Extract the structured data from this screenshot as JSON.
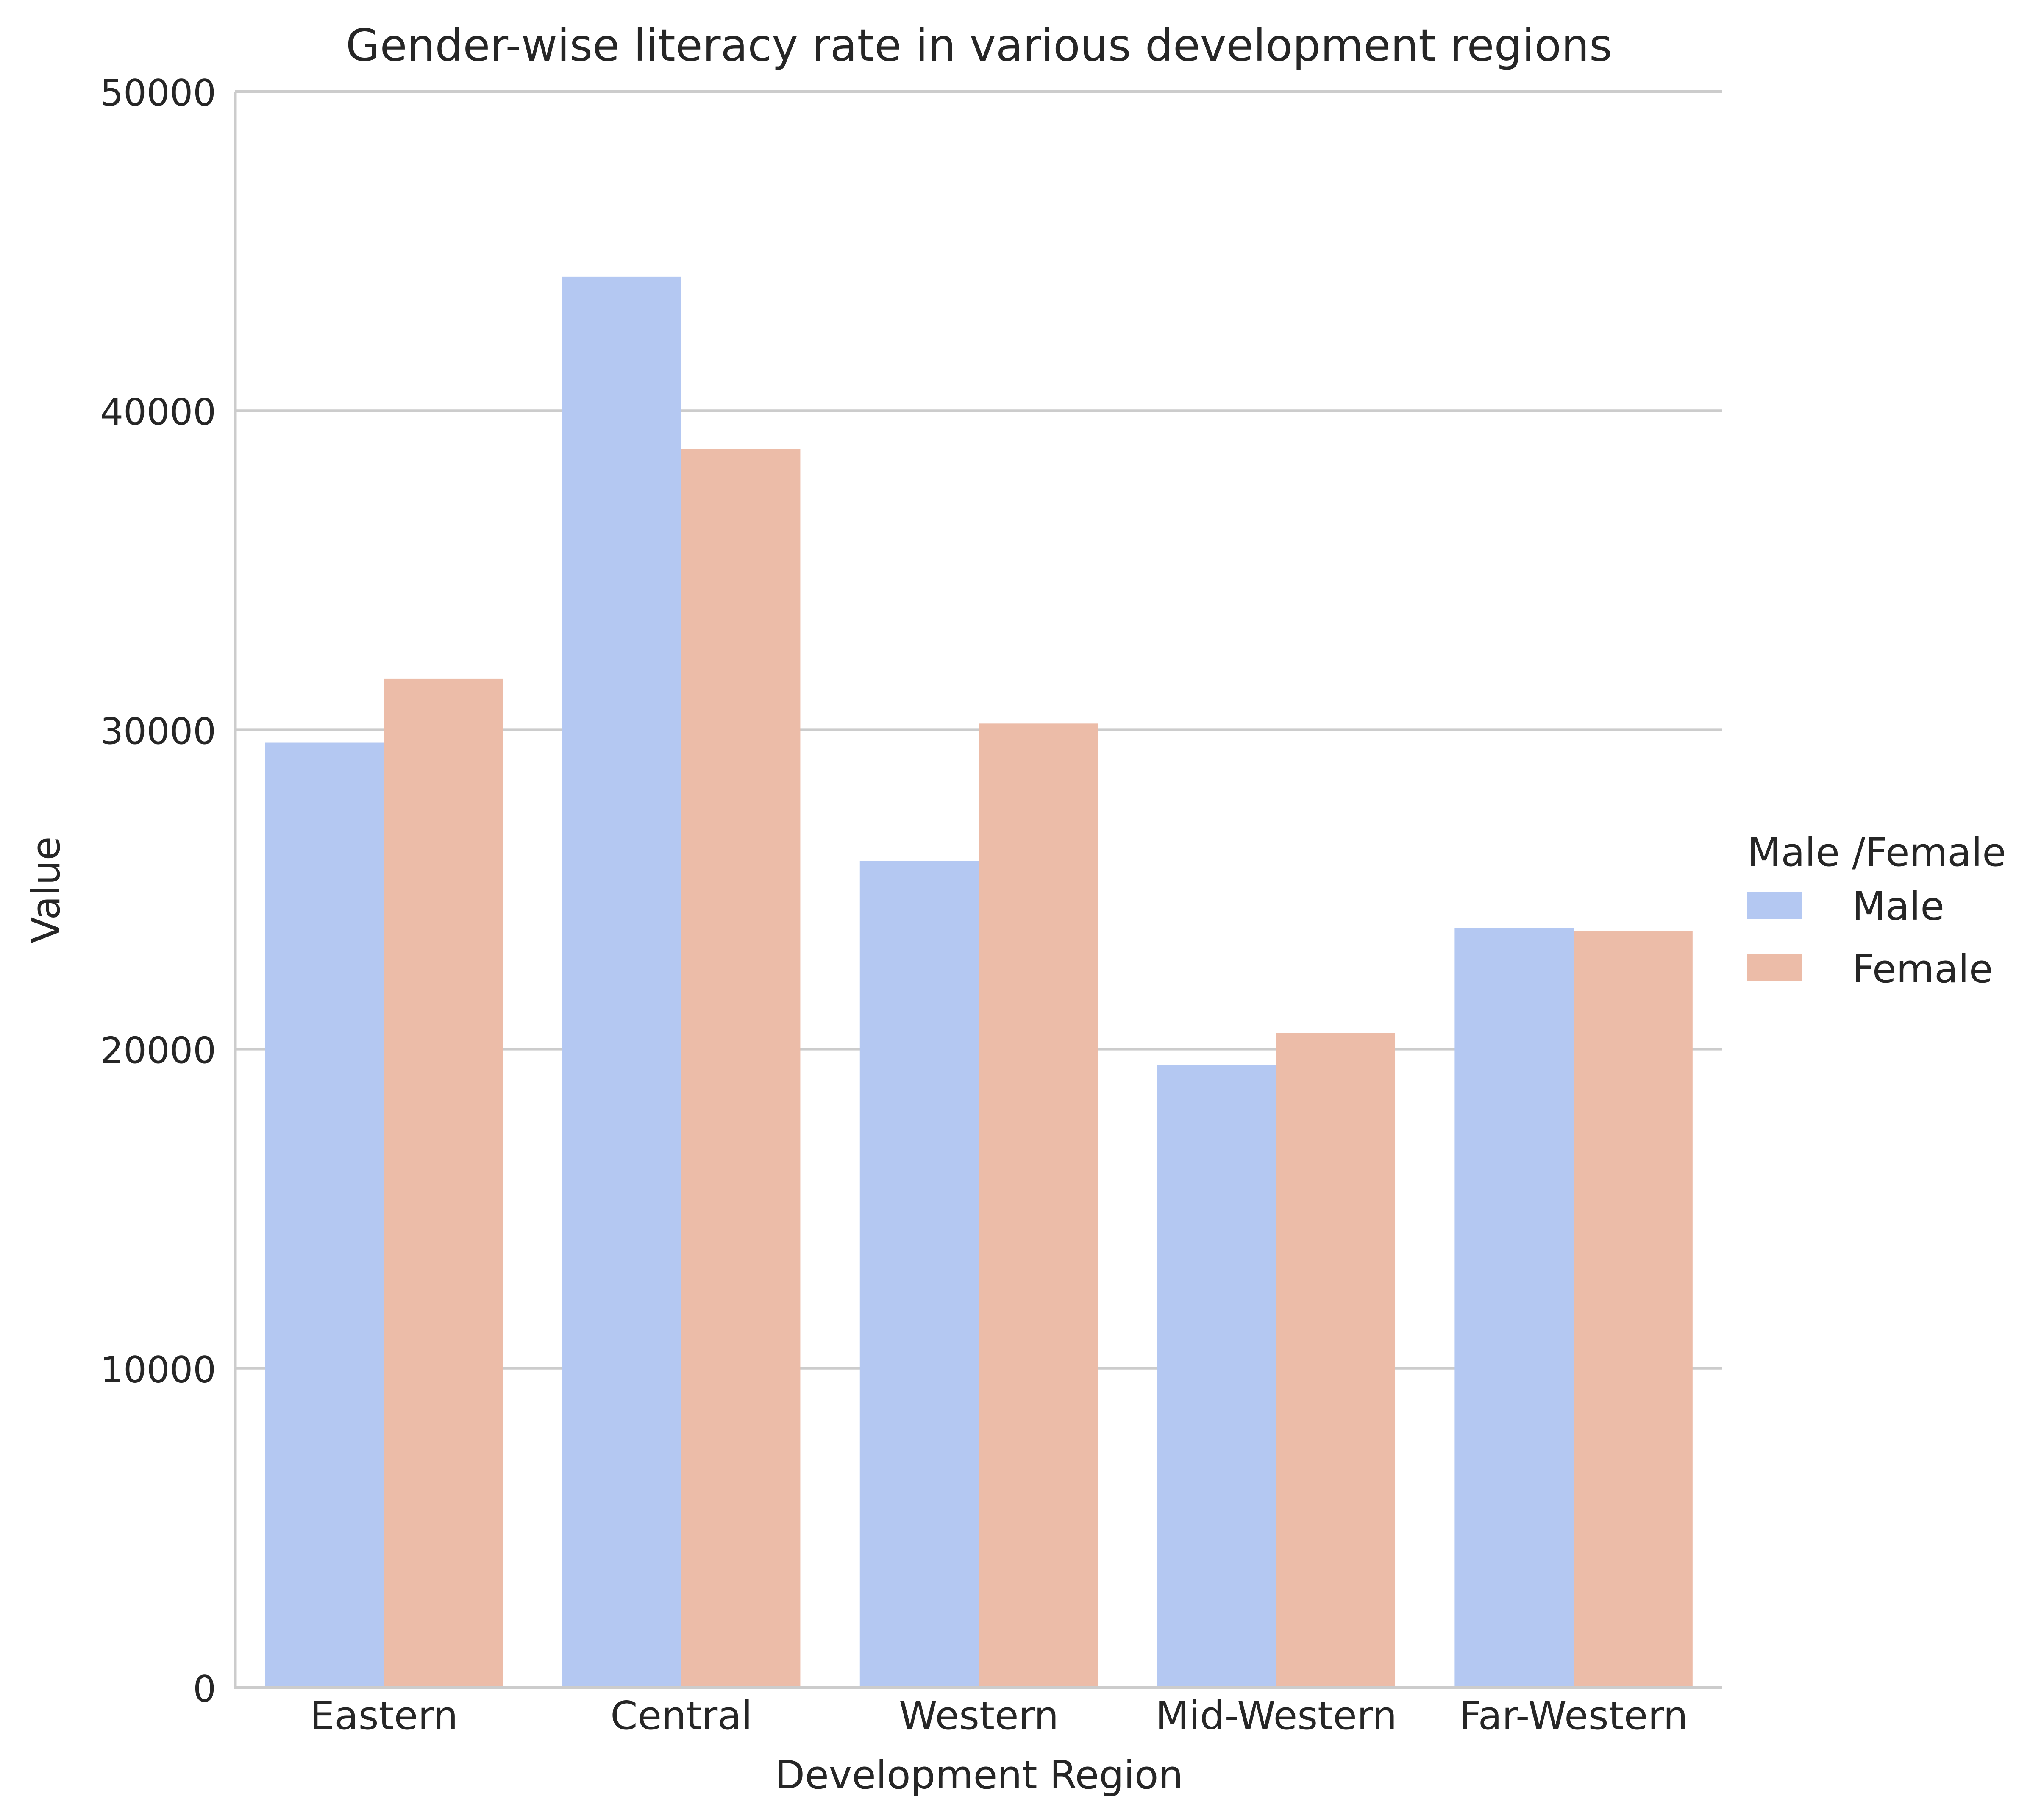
{
  "chart_data": {
    "type": "bar",
    "title": "Gender-wise literacy rate in various development regions",
    "xlabel": "Development Region",
    "ylabel": "Value",
    "ylim": [
      0,
      50000
    ],
    "yticks": [
      0,
      10000,
      20000,
      30000,
      40000,
      50000
    ],
    "grid": "horizontal",
    "legend": {
      "title": "Male /Female",
      "position": "right"
    },
    "categories": [
      "Eastern",
      "Central",
      "Western",
      "Mid-Western",
      "Far-Western"
    ],
    "series": [
      {
        "name": "Male",
        "color": "#b4c8f2",
        "values": [
          29600,
          44200,
          25900,
          19500,
          23800
        ]
      },
      {
        "name": "Female",
        "color": "#ecbca8",
        "values": [
          31600,
          38800,
          30200,
          20500,
          23700
        ]
      }
    ]
  }
}
